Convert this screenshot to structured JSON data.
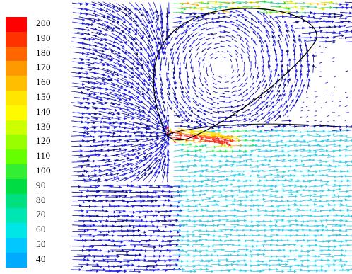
{
  "legend": {
    "entries": [
      {
        "label": "200",
        "color": "#ff0000"
      },
      {
        "label": "190",
        "color": "#ff3200"
      },
      {
        "label": "180",
        "color": "#ff6600"
      },
      {
        "label": "170",
        "color": "#ff9900"
      },
      {
        "label": "160",
        "color": "#ffbf00"
      },
      {
        "label": "150",
        "color": "#ffe600"
      },
      {
        "label": "140",
        "color": "#fffa00"
      },
      {
        "label": "130",
        "color": "#ccff00"
      },
      {
        "label": "120",
        "color": "#99ff00"
      },
      {
        "label": "110",
        "color": "#66ff00"
      },
      {
        "label": "100",
        "color": "#33ee33"
      },
      {
        "label": "90",
        "color": "#00dd44"
      },
      {
        "label": "80",
        "color": "#00e080"
      },
      {
        "label": "70",
        "color": "#00e6b3"
      },
      {
        "label": "60",
        "color": "#00e6e6"
      },
      {
        "label": "50",
        "color": "#00c8ff"
      },
      {
        "label": "40",
        "color": "#00aaff"
      }
    ]
  },
  "colors": {
    "slow_flow": "#1c1ce6",
    "dark_flow": "#0a0a8c",
    "fast_flow": "#ff2a1a",
    "wake_flow": "#33cce6",
    "separation_line": "#000000"
  }
}
